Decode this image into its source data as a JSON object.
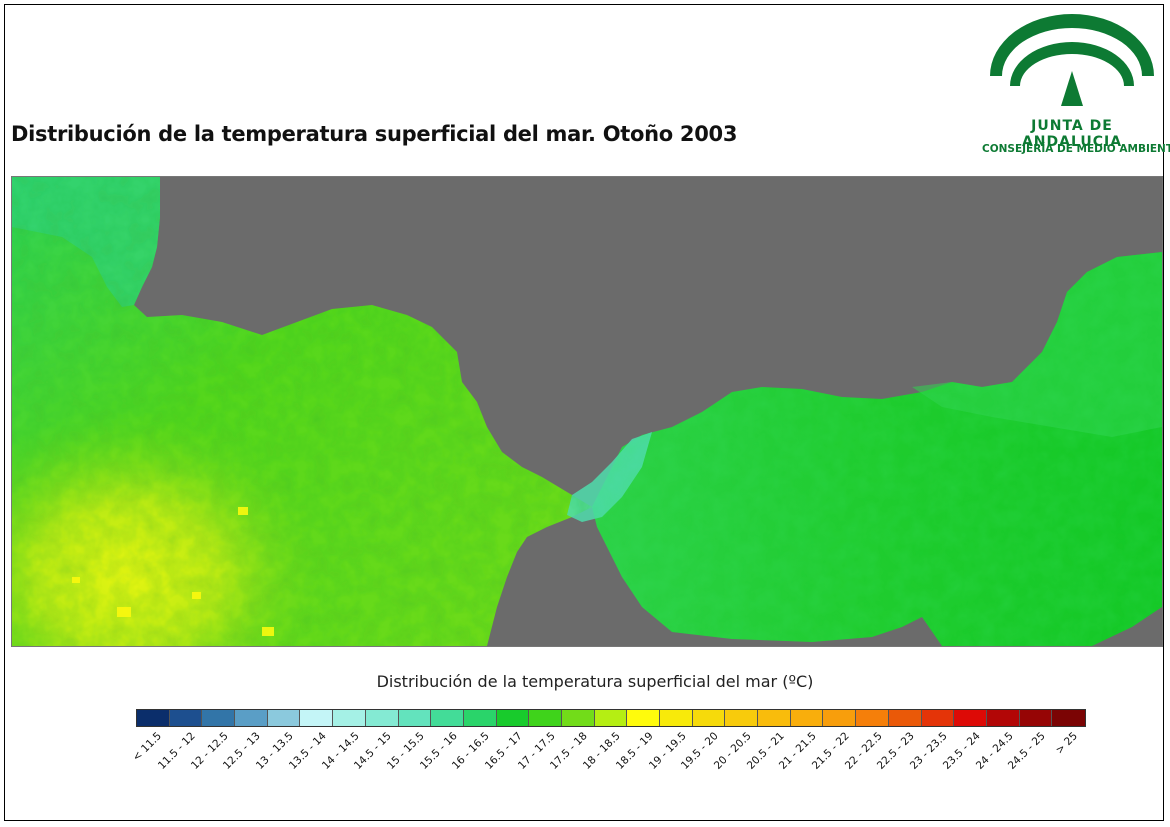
{
  "title": "Distribución de la temperatura superficial del mar. Otoño 2003",
  "logo": {
    "line1": "JUNTA DE ANDALUCIA",
    "line2": "CONSEJERÍA DE MEDIO AMBIENTE",
    "color": "#0d7a33"
  },
  "map": {
    "land_color": "#6b6b6b",
    "dominant_sea_colors": [
      "#22c93a",
      "#49d21c",
      "#9be413",
      "#e6f511",
      "#30d87a"
    ]
  },
  "legend": {
    "title": "Distribución de la temperatura superficial del mar (ºC)",
    "unit": "ºC",
    "classes": [
      {
        "label": "< 11.5",
        "color": "#0b2e6b"
      },
      {
        "label": "11.5 - 12",
        "color": "#1d4f8f"
      },
      {
        "label": "12 - 12.5",
        "color": "#3275a8"
      },
      {
        "label": "12.5 - 13",
        "color": "#5a9ec6"
      },
      {
        "label": "13 - 13.5",
        "color": "#8bc9dd"
      },
      {
        "label": "13.5 - 14",
        "color": "#c4f5f7"
      },
      {
        "label": "14 - 14.5",
        "color": "#a5f1e6"
      },
      {
        "label": "14.5 - 15",
        "color": "#84ead3"
      },
      {
        "label": "15 - 15.5",
        "color": "#63e3bd"
      },
      {
        "label": "15.5 - 16",
        "color": "#43dc98"
      },
      {
        "label": "16 - 16.5",
        "color": "#2ad46a"
      },
      {
        "label": "16.5 - 17",
        "color": "#18cb2c"
      },
      {
        "label": "17 - 17.5",
        "color": "#3fd31b"
      },
      {
        "label": "17.5 - 18",
        "color": "#72dc19"
      },
      {
        "label": "18 - 18.5",
        "color": "#b5ee13"
      },
      {
        "label": "18.5 - 19",
        "color": "#fffb0c"
      },
      {
        "label": "19 - 19.5",
        "color": "#f8ea0a"
      },
      {
        "label": "19.5 - 20",
        "color": "#f6da0b"
      },
      {
        "label": "20 - 20.5",
        "color": "#f8cb0c"
      },
      {
        "label": "20.5 - 21",
        "color": "#f9bc0c"
      },
      {
        "label": "21 - 21.5",
        "color": "#f9ae0c"
      },
      {
        "label": "21.5 - 22",
        "color": "#f89e0c"
      },
      {
        "label": "22 - 22.5",
        "color": "#f57f0a"
      },
      {
        "label": "22.5 - 23",
        "color": "#ea5908"
      },
      {
        "label": "23 - 23.5",
        "color": "#e43408"
      },
      {
        "label": "23.5 - 24",
        "color": "#dd0a06"
      },
      {
        "label": "24 - 24.5",
        "color": "#b20606"
      },
      {
        "label": "24.5 - 25",
        "color": "#960505"
      },
      {
        "label": "> 25",
        "color": "#7b0404"
      }
    ]
  }
}
